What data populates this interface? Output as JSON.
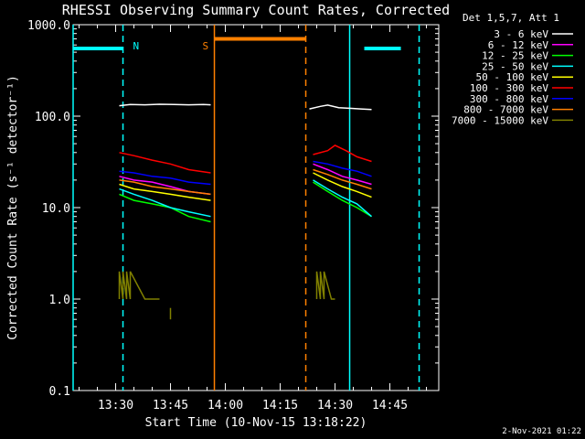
{
  "chart_data": {
    "type": "line",
    "title": "RHESSI Observing Summary Count Rates, Corrected",
    "xlabel": "Start Time (10-Nov-15 13:18:22)",
    "ylabel": "Corrected Count Rate (s⁻¹ detector⁻¹)",
    "y_scale": "log",
    "ylim": [
      0.1,
      1000.0
    ],
    "xlim": [
      "13:18:22",
      "14:58:22"
    ],
    "x_tick_labels": [
      "13:30",
      "13:45",
      "14:00",
      "14:15",
      "14:30",
      "14:45"
    ],
    "x_tick_values": [
      "13:30",
      "13:45",
      "14:00",
      "14:15",
      "14:30",
      "14:45"
    ],
    "y_tick_labels": [
      "0.1",
      "1.0",
      "10.0",
      "100.0",
      "1000.0"
    ],
    "legend_title": "Det 1,5,7, Att 1",
    "legend_position": "right",
    "footer": "2-Nov-2021 01:22",
    "series": [
      {
        "name": "3 - 6 keV",
        "color": "#ffffff",
        "segments": [
          {
            "x": [
              "13:31",
              "13:34",
              "13:38",
              "13:42",
              "13:46",
              "13:50",
              "13:54",
              "13:56"
            ],
            "y": [
              130,
              134,
              133,
              135,
              134,
              133,
              134,
              133
            ]
          },
          {
            "x": [
              "14:23",
              "14:26",
              "14:28",
              "14:31",
              "14:34",
              "14:37",
              "14:40"
            ],
            "y": [
              120,
              128,
              132,
              124,
              122,
              120,
              118
            ]
          }
        ]
      },
      {
        "name": "6 - 12 keV",
        "color": "#ff00ff",
        "segments": [
          {
            "x": [
              "13:31",
              "13:35",
              "13:40",
              "13:45",
              "13:50",
              "13:56"
            ],
            "y": [
              22,
              20,
              19,
              17,
              15,
              14
            ]
          },
          {
            "x": [
              "14:24",
              "14:28",
              "14:32",
              "14:36",
              "14:40"
            ],
            "y": [
              30,
              26,
              22,
              20,
              18
            ]
          }
        ]
      },
      {
        "name": "12 - 25 keV",
        "color": "#00ff00",
        "segments": [
          {
            "x": [
              "13:31",
              "13:35",
              "13:40",
              "13:45",
              "13:50",
              "13:56"
            ],
            "y": [
              14,
              12,
              11,
              10,
              8,
              7
            ]
          },
          {
            "x": [
              "14:24",
              "14:28",
              "14:32",
              "14:36",
              "14:40"
            ],
            "y": [
              19,
              15,
              12,
              10,
              8
            ]
          }
        ]
      },
      {
        "name": "25 - 50 keV",
        "color": "#00ffff",
        "segments": [
          {
            "x": [
              "13:31",
              "13:35",
              "13:40",
              "13:45",
              "13:50",
              "13:56"
            ],
            "y": [
              16,
              14,
              12,
              10,
              9,
              8
            ]
          },
          {
            "x": [
              "14:24",
              "14:28",
              "14:32",
              "14:36",
              "14:40"
            ],
            "y": [
              20,
              16,
              13,
              11,
              8
            ]
          }
        ]
      },
      {
        "name": "50 - 100 keV",
        "color": "#ffff00",
        "segments": [
          {
            "x": [
              "13:31",
              "13:35",
              "13:40",
              "13:45",
              "13:50",
              "13:56"
            ],
            "y": [
              18,
              16,
              15,
              14,
              13,
              12
            ]
          },
          {
            "x": [
              "14:24",
              "14:28",
              "14:32",
              "14:36",
              "14:40"
            ],
            "y": [
              24,
              20,
              17,
              15,
              13
            ]
          }
        ]
      },
      {
        "name": "100 - 300 keV",
        "color": "#ff0000",
        "segments": [
          {
            "x": [
              "13:31",
              "13:35",
              "13:40",
              "13:45",
              "13:50",
              "13:56"
            ],
            "y": [
              40,
              37,
              33,
              30,
              26,
              24
            ]
          },
          {
            "x": [
              "14:24",
              "14:28",
              "14:30",
              "14:33",
              "14:36",
              "14:40"
            ],
            "y": [
              38,
              42,
              48,
              42,
              36,
              32
            ]
          }
        ]
      },
      {
        "name": "300 - 800 keV",
        "color": "#0000ff",
        "segments": [
          {
            "x": [
              "13:31",
              "13:35",
              "13:40",
              "13:45",
              "13:50",
              "13:56"
            ],
            "y": [
              25,
              24,
              22,
              21,
              19,
              18
            ]
          },
          {
            "x": [
              "14:24",
              "14:28",
              "14:32",
              "14:36",
              "14:40"
            ],
            "y": [
              32,
              30,
              27,
              25,
              22
            ]
          }
        ]
      },
      {
        "name": "800 - 7000 keV",
        "color": "#ff8000",
        "segments": [
          {
            "x": [
              "13:31",
              "13:35",
              "13:40",
              "13:45",
              "13:50",
              "13:56"
            ],
            "y": [
              20,
              19,
              17,
              16,
              15,
              14
            ]
          },
          {
            "x": [
              "14:24",
              "14:28",
              "14:32",
              "14:36",
              "14:40"
            ],
            "y": [
              26,
              23,
              20,
              18,
              16
            ]
          }
        ]
      },
      {
        "name": "7000 - 15000 keV",
        "color": "#808000",
        "segments": [
          {
            "x": [
              "13:31",
              "13:31",
              "13:32",
              "13:32",
              "13:33",
              "13:33",
              "13:34",
              "13:34",
              "13:38",
              "13:42"
            ],
            "y": [
              1.0,
              2.0,
              1.0,
              2.0,
              1.0,
              2.0,
              1.0,
              2.0,
              1.0,
              1.0
            ]
          },
          {
            "x": [
              "13:45",
              "13:45"
            ],
            "y": [
              0.8,
              0.6
            ]
          },
          {
            "x": [
              "14:25",
              "14:25",
              "14:26",
              "14:26",
              "14:27",
              "14:27",
              "14:29",
              "14:30"
            ],
            "y": [
              1.0,
              2.0,
              1.0,
              2.0,
              1.0,
              2.0,
              1.0,
              1.0
            ]
          }
        ]
      }
    ],
    "status_bars": [
      {
        "label": "N",
        "color": "#00ffff",
        "segments": [
          [
            "13:18:22",
            "13:32"
          ],
          [
            "14:38",
            "14:48"
          ]
        ],
        "level": 550
      },
      {
        "label": "S",
        "color": "#ff8000",
        "segments": [
          [
            "13:57",
            "14:22"
          ]
        ],
        "level": 700
      }
    ],
    "vertical_markers": [
      {
        "time": "13:18:22",
        "color": "#00ffff",
        "style": "solid"
      },
      {
        "time": "13:32",
        "color": "#00ffff",
        "style": "dashed"
      },
      {
        "time": "13:57",
        "color": "#ff8000",
        "style": "solid"
      },
      {
        "time": "14:22",
        "color": "#ff8000",
        "style": "dashed"
      },
      {
        "time": "14:34",
        "color": "#00ffff",
        "style": "solid"
      },
      {
        "time": "14:53",
        "color": "#00ffff",
        "style": "dashed"
      }
    ],
    "bar_labels": [
      {
        "text": "N",
        "color": "#00ffff",
        "time": "13:34",
        "level": 600
      },
      {
        "text": "S",
        "color": "#ff8000",
        "time": "13:53",
        "level": 600
      }
    ]
  }
}
